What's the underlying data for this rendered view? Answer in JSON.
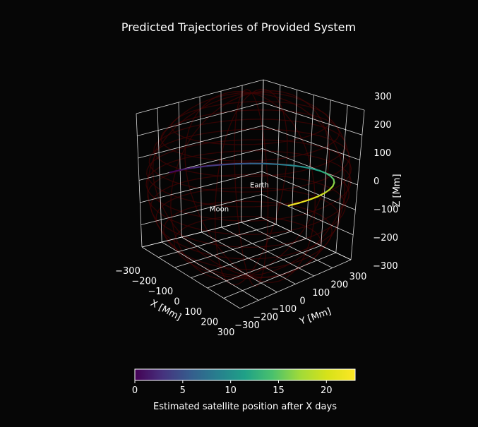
{
  "title": "Predicted Trajectories of Provided System",
  "chart_data": {
    "type": "line",
    "projection": "3d",
    "title": "Predicted Trajectories of Provided System",
    "xlabel": "X [Mm]",
    "ylabel": "Y [Mm]",
    "zlabel": "Z [Mm]",
    "xlim": [
      -300,
      300
    ],
    "ylim": [
      -300,
      300
    ],
    "zlim": [
      -300,
      300
    ],
    "x_ticks": [
      -300,
      -200,
      -100,
      0,
      100,
      200,
      300
    ],
    "y_ticks": [
      -300,
      -200,
      -100,
      0,
      100,
      200,
      300
    ],
    "z_ticks": [
      -300,
      -200,
      -100,
      0,
      100,
      200,
      300
    ],
    "x_tick_labels": [
      "−300",
      "−200",
      "−100",
      "0",
      "100",
      "200",
      "300"
    ],
    "y_tick_labels": [
      "−300",
      "−200",
      "−100",
      "0",
      "100",
      "200",
      "300"
    ],
    "z_tick_labels": [
      "−300",
      "−200",
      "−100",
      "0",
      "100",
      "200",
      "300"
    ],
    "grid": true,
    "background_color": "#060606",
    "pane_color": "#060606",
    "grid_color": "#ffffff",
    "wireframe_color": "#8b0000",
    "colormap": "viridis",
    "bodies": [
      {
        "label": "Earth",
        "x": 0,
        "y": 0,
        "z": 0
      },
      {
        "label": "Moon",
        "x": 100,
        "y": -286,
        "z": 0
      }
    ],
    "trajectory": {
      "t_days": [
        0,
        1,
        2,
        3,
        4,
        5,
        6,
        7,
        8,
        9,
        10,
        11,
        12,
        13,
        14,
        15,
        16,
        17,
        18,
        19,
        20,
        21,
        22,
        23
      ],
      "x_Mm": [
        -300,
        -297,
        -287,
        -270,
        -248,
        -220,
        -187,
        -150,
        -109,
        -67,
        -23,
        21,
        64,
        106,
        145,
        181,
        212,
        239,
        260,
        276,
        286,
        290,
        288,
        281
      ],
      "y_Mm": [
        -150,
        -98,
        -45,
        8,
        59,
        108,
        153,
        193,
        227,
        256,
        277,
        291,
        298,
        297,
        289,
        274,
        252,
        223,
        189,
        150,
        106,
        59,
        10,
        -39
      ],
      "z_Mm": [
        0,
        0,
        0,
        0,
        0,
        0,
        0,
        0,
        0,
        0,
        0,
        0,
        0,
        0,
        0,
        0,
        0,
        0,
        0,
        0,
        0,
        0,
        0,
        0
      ]
    },
    "colorbar": {
      "label": "Estimated satellite position after X days",
      "ticks": [
        0,
        5,
        10,
        15,
        20
      ],
      "tick_labels": [
        "0",
        "5",
        "10",
        "15",
        "20"
      ],
      "min": 0,
      "max": 23,
      "orientation": "horizontal",
      "placement": "bottom"
    }
  }
}
